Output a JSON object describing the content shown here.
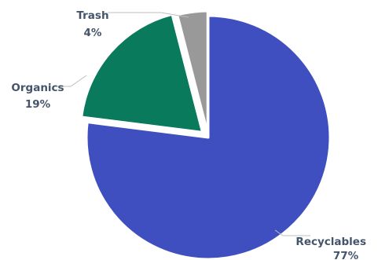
{
  "chart_data": {
    "type": "pie",
    "title": "",
    "categories": [
      "Recyclables",
      "Organics",
      "Trash"
    ],
    "values": [
      77,
      19,
      4
    ],
    "value_labels": [
      "77%",
      "19%",
      "4%"
    ],
    "colors": [
      "#3f4fbf",
      "#0a7a5c",
      "#999999"
    ],
    "start": "12 o'clock",
    "direction": "clockwise",
    "exploded": [
      "Organics",
      "Trash"
    ],
    "legend": "none",
    "label_lines": true
  }
}
